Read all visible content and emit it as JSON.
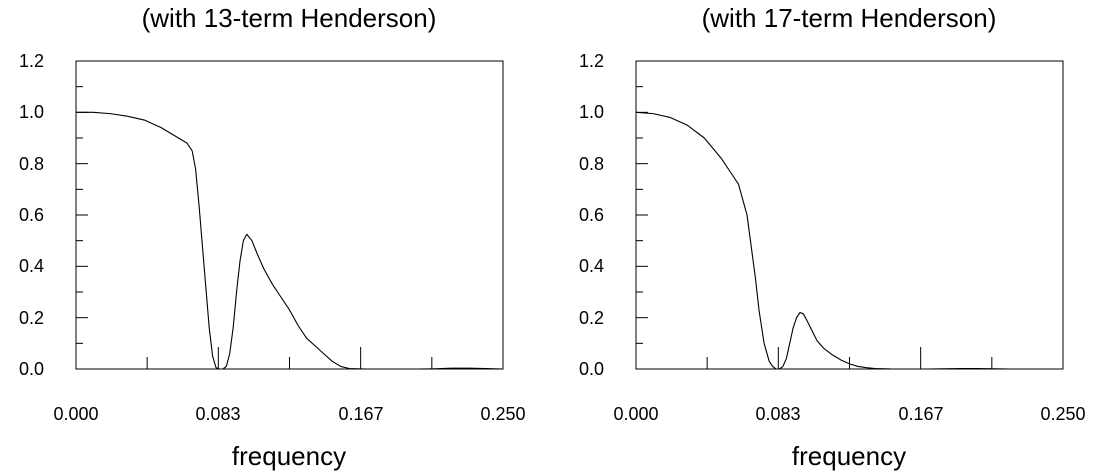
{
  "chart_data": [
    {
      "type": "line",
      "title": "(with 13-term Henderson)",
      "xlabel": "frequency",
      "ylabel": "",
      "xlim": [
        0,
        0.25
      ],
      "ylim": [
        0,
        1.2
      ],
      "xticks": [
        "0.000",
        "0.083",
        "0.167",
        "0.250"
      ],
      "yticks": [
        "0.0",
        "0.2",
        "0.4",
        "0.6",
        "0.8",
        "1.0",
        "1.2"
      ],
      "grid": false,
      "series": [
        {
          "x": [
            0.0,
            0.01,
            0.02,
            0.03,
            0.04,
            0.05,
            0.06,
            0.065,
            0.068,
            0.07,
            0.072,
            0.075,
            0.078,
            0.08,
            0.082,
            0.084,
            0.086,
            0.088,
            0.09,
            0.092,
            0.094,
            0.096,
            0.098,
            0.1,
            0.103,
            0.106,
            0.11,
            0.115,
            0.12,
            0.125,
            0.13,
            0.135,
            0.14,
            0.145,
            0.15,
            0.155,
            0.16,
            0.17,
            0.18,
            0.19,
            0.2,
            0.21,
            0.22,
            0.23,
            0.24,
            0.25
          ],
          "y": [
            1.0,
            1.0,
            0.995,
            0.985,
            0.97,
            0.94,
            0.9,
            0.88,
            0.85,
            0.78,
            0.64,
            0.4,
            0.16,
            0.05,
            0.005,
            0.0,
            0.0,
            0.01,
            0.06,
            0.16,
            0.3,
            0.42,
            0.5,
            0.525,
            0.5,
            0.45,
            0.39,
            0.33,
            0.28,
            0.23,
            0.17,
            0.12,
            0.09,
            0.06,
            0.03,
            0.01,
            0.002,
            0.0,
            0.0,
            0.0,
            0.0,
            0.001,
            0.003,
            0.003,
            0.002,
            0.0
          ]
        }
      ]
    },
    {
      "type": "line",
      "title": "(with 17-term Henderson)",
      "xlabel": "frequency",
      "ylabel": "",
      "xlim": [
        0,
        0.25
      ],
      "ylim": [
        0,
        1.2
      ],
      "xticks": [
        "0.000",
        "0.083",
        "0.167",
        "0.250"
      ],
      "yticks": [
        "0.0",
        "0.2",
        "0.4",
        "0.6",
        "0.8",
        "1.0",
        "1.2"
      ],
      "grid": false,
      "series": [
        {
          "x": [
            0.0,
            0.01,
            0.02,
            0.03,
            0.04,
            0.05,
            0.055,
            0.06,
            0.065,
            0.068,
            0.07,
            0.072,
            0.075,
            0.078,
            0.08,
            0.082,
            0.084,
            0.086,
            0.088,
            0.09,
            0.092,
            0.094,
            0.096,
            0.098,
            0.1,
            0.103,
            0.106,
            0.11,
            0.115,
            0.12,
            0.125,
            0.13,
            0.135,
            0.14,
            0.15,
            0.16,
            0.17,
            0.18,
            0.19,
            0.2,
            0.21,
            0.22,
            0.23,
            0.24,
            0.25
          ],
          "y": [
            1.0,
            0.995,
            0.98,
            0.95,
            0.9,
            0.82,
            0.77,
            0.72,
            0.6,
            0.45,
            0.35,
            0.23,
            0.1,
            0.03,
            0.01,
            0.0,
            0.0,
            0.01,
            0.04,
            0.1,
            0.16,
            0.2,
            0.22,
            0.215,
            0.19,
            0.15,
            0.11,
            0.08,
            0.055,
            0.035,
            0.02,
            0.01,
            0.005,
            0.002,
            0.0,
            0.0,
            0.0,
            0.001,
            0.002,
            0.002,
            0.001,
            0.0,
            0.0,
            0.0,
            0.0
          ]
        }
      ]
    }
  ]
}
